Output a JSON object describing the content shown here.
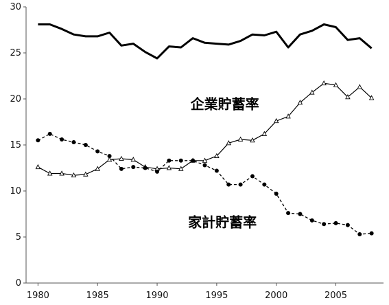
{
  "chart_data": {
    "type": "line",
    "title": "",
    "xlabel": "",
    "ylabel": "",
    "xlim": [
      1979,
      2009
    ],
    "ylim": [
      0,
      30
    ],
    "x_ticks": [
      1980,
      1985,
      1990,
      1995,
      2000,
      2005
    ],
    "y_ticks": [
      0,
      5,
      10,
      15,
      20,
      25,
      30
    ],
    "grid": false,
    "legend": "none",
    "series": [
      {
        "name": "",
        "style": "thick-solid",
        "color": "#000000",
        "x": [
          1980,
          1981,
          1982,
          1983,
          1984,
          1985,
          1986,
          1987,
          1988,
          1989,
          1990,
          1991,
          1992,
          1993,
          1994,
          1995,
          1996,
          1997,
          1998,
          1999,
          2000,
          2001,
          2002,
          2003,
          2004,
          2005,
          2006,
          2007,
          2008
        ],
        "y": [
          28.1,
          28.1,
          27.6,
          27.0,
          26.8,
          26.8,
          27.2,
          25.8,
          26.0,
          25.1,
          24.4,
          25.7,
          25.6,
          26.6,
          26.1,
          26.0,
          25.9,
          26.3,
          27.0,
          26.9,
          27.3,
          25.6,
          27.0,
          27.4,
          28.1,
          27.8,
          26.4,
          26.6,
          25.5
        ]
      },
      {
        "name": "企業貯蓄率",
        "style": "solid-triangle",
        "color": "#000000",
        "x": [
          1980,
          1981,
          1982,
          1983,
          1984,
          1985,
          1986,
          1987,
          1988,
          1989,
          1990,
          1991,
          1992,
          1993,
          1994,
          1995,
          1996,
          1997,
          1998,
          1999,
          2000,
          2001,
          2002,
          2003,
          2004,
          2005,
          2006,
          2007,
          2008
        ],
        "y": [
          12.6,
          11.9,
          11.9,
          11.7,
          11.8,
          12.4,
          13.4,
          13.5,
          13.4,
          12.6,
          12.4,
          12.5,
          12.4,
          13.3,
          13.3,
          13.8,
          15.2,
          15.6,
          15.5,
          16.2,
          17.6,
          18.1,
          19.6,
          20.7,
          21.7,
          21.5,
          20.2,
          21.3,
          20.1
        ]
      },
      {
        "name": "家計貯蓄率",
        "style": "dashed-circle",
        "color": "#000000",
        "x": [
          1980,
          1981,
          1982,
          1983,
          1984,
          1985,
          1986,
          1987,
          1988,
          1989,
          1990,
          1991,
          1992,
          1993,
          1994,
          1995,
          1996,
          1997,
          1998,
          1999,
          2000,
          2001,
          2002,
          2003,
          2004,
          2005,
          2006,
          2007,
          2008
        ],
        "y": [
          15.5,
          16.2,
          15.6,
          15.3,
          15.0,
          14.3,
          13.8,
          12.4,
          12.6,
          12.5,
          12.1,
          13.3,
          13.3,
          13.3,
          12.8,
          12.2,
          10.7,
          10.7,
          11.6,
          10.7,
          9.7,
          7.6,
          7.5,
          6.8,
          6.4,
          6.5,
          6.3,
          5.3,
          5.4
        ]
      }
    ],
    "annotations": [
      {
        "text": "企業貯蓄率",
        "x": 1992.8,
        "y": 18.9
      },
      {
        "text": "家計貯蓄率",
        "x": 1992.6,
        "y": 6.1
      }
    ]
  }
}
